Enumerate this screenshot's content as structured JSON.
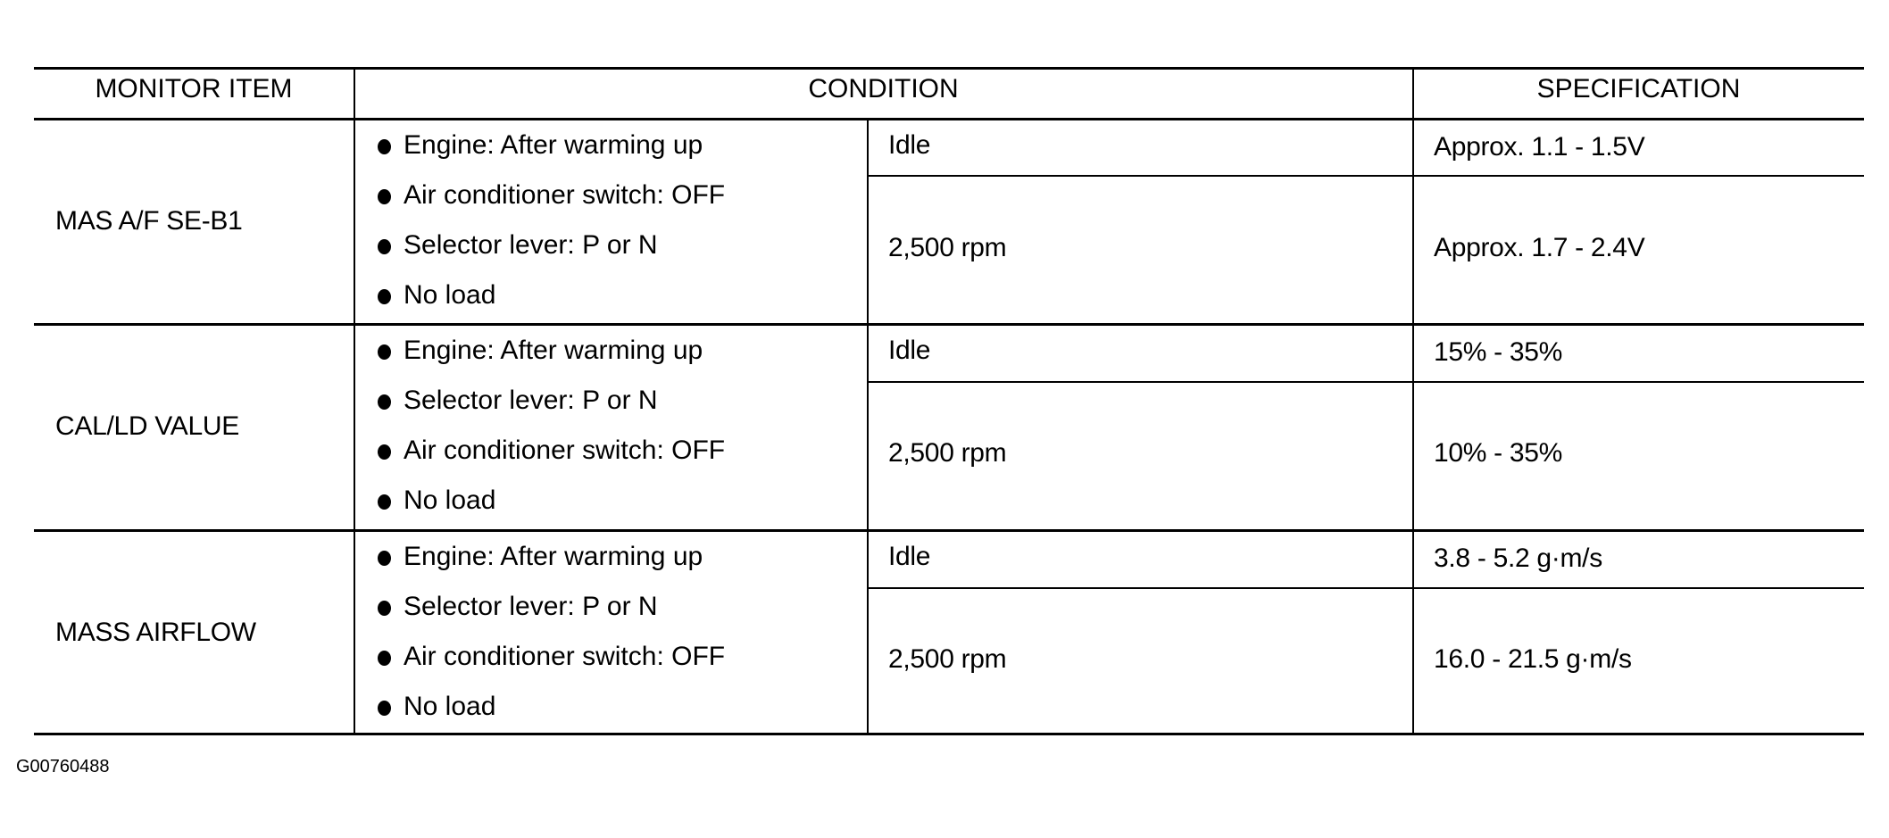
{
  "headers": [
    "MONITOR ITEM",
    "CONDITION",
    "SPECIFICATION"
  ],
  "rows": [
    {
      "item": "MAS A/F SE-B1",
      "conditions": [
        "Engine: After warming up",
        "Air conditioner switch: OFF",
        "Selector lever: P or N",
        "No load"
      ],
      "sub": [
        {
          "state": "Idle",
          "spec": "Approx. 1.1 - 1.5V"
        },
        {
          "state": "2,500 rpm",
          "spec": "Approx. 1.7 - 2.4V"
        }
      ]
    },
    {
      "item": "CAL/LD VALUE",
      "conditions": [
        "Engine: After warming up",
        "Selector lever: P or N",
        "Air conditioner switch: OFF",
        "No load"
      ],
      "sub": [
        {
          "state": "Idle",
          "spec": "15% - 35%"
        },
        {
          "state": "2,500 rpm",
          "spec": "10% - 35%"
        }
      ]
    },
    {
      "item": "MASS AIRFLOW",
      "conditions": [
        "Engine: After warming up",
        "Selector lever: P or N",
        "Air conditioner switch: OFF",
        "No load"
      ],
      "sub": [
        {
          "state": "Idle",
          "spec": "3.8 - 5.2 g·m/s"
        },
        {
          "state": "2,500 rpm",
          "spec": "16.0 - 21.5 g·m/s"
        }
      ]
    }
  ],
  "figure_id": "G00760488"
}
